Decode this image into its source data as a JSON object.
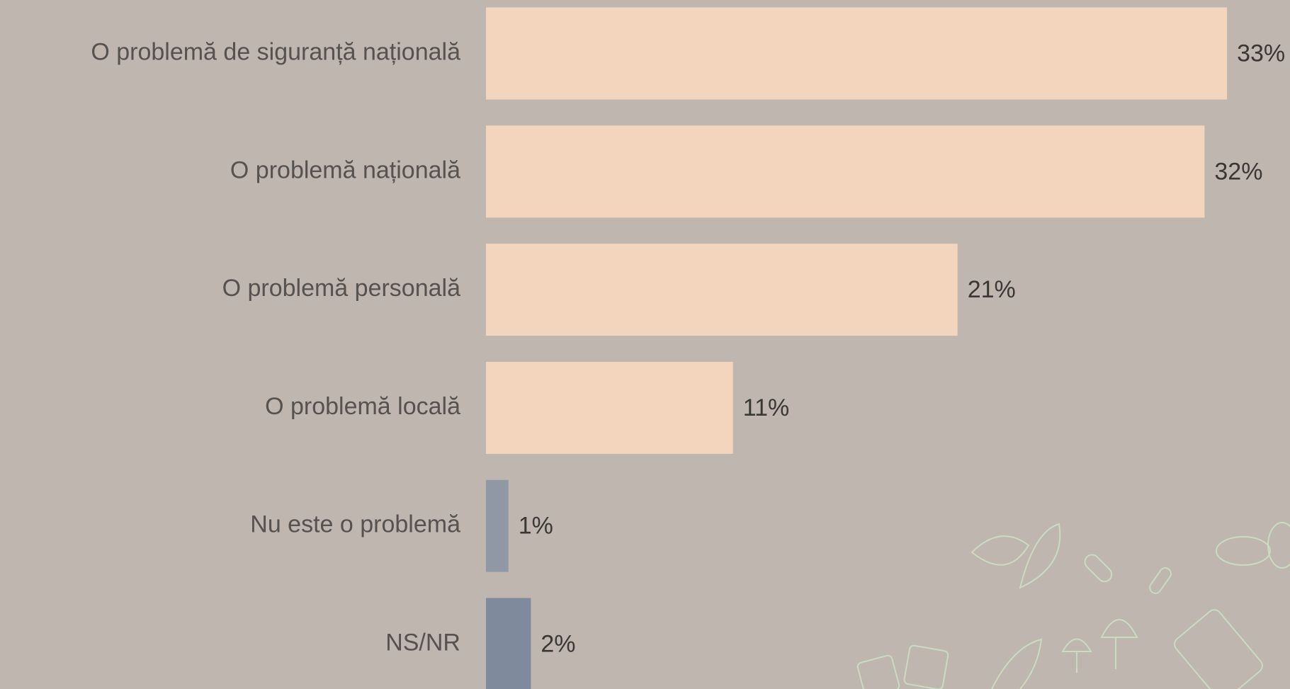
{
  "chart_data": {
    "type": "bar",
    "orientation": "horizontal",
    "categories": [
      "O problemă de siguranță națională",
      "O problemă națională",
      "O problemă personală",
      "O problemă locală",
      "Nu este o problemă",
      "NS/NR"
    ],
    "values": [
      33,
      32,
      21,
      11,
      1,
      2
    ],
    "value_labels": [
      "33%",
      "32%",
      "21%",
      "11%",
      "1%",
      "2%"
    ],
    "colors": [
      "#f2d5bc",
      "#f2d5bc",
      "#f2d5bc",
      "#f2d5bc",
      "#9198a5",
      "#7f8b9d"
    ]
  }
}
